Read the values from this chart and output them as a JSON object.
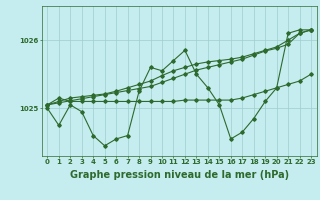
{
  "title": "Graphe pression niveau de la mer (hPa)",
  "xlabel_hours": [
    0,
    1,
    2,
    3,
    4,
    5,
    6,
    7,
    8,
    9,
    10,
    11,
    12,
    13,
    14,
    15,
    16,
    17,
    18,
    19,
    20,
    21,
    22,
    23
  ],
  "ylim": [
    1024.3,
    1026.5
  ],
  "yticks": [
    1025,
    1026
  ],
  "bg_color": "#c5ecee",
  "line_color": "#2d6a2d",
  "grid_color": "#9ecece",
  "series_main": [
    1025.0,
    1024.75,
    1025.05,
    1024.95,
    1024.6,
    1024.45,
    1024.55,
    1024.6,
    1025.25,
    1025.6,
    1025.55,
    1025.7,
    1025.85,
    1025.5,
    1025.3,
    1025.05,
    1024.55,
    1024.65,
    1024.85,
    1025.1,
    1025.3,
    1026.1,
    1026.15,
    1026.15
  ],
  "series_linear1": [
    1025.05,
    1025.08,
    1025.11,
    1025.14,
    1025.17,
    1025.2,
    1025.23,
    1025.26,
    1025.29,
    1025.32,
    1025.38,
    1025.44,
    1025.5,
    1025.56,
    1025.6,
    1025.64,
    1025.68,
    1025.72,
    1025.78,
    1025.84,
    1025.88,
    1025.94,
    1026.1,
    1026.15
  ],
  "series_linear2": [
    1025.05,
    1025.1,
    1025.15,
    1025.17,
    1025.19,
    1025.21,
    1025.25,
    1025.3,
    1025.35,
    1025.4,
    1025.48,
    1025.55,
    1025.6,
    1025.65,
    1025.68,
    1025.7,
    1025.72,
    1025.75,
    1025.8,
    1025.85,
    1025.9,
    1026.0,
    1026.1,
    1026.15
  ],
  "series_flat": [
    1025.05,
    1025.15,
    1025.1,
    1025.1,
    1025.1,
    1025.1,
    1025.1,
    1025.1,
    1025.1,
    1025.1,
    1025.1,
    1025.1,
    1025.12,
    1025.12,
    1025.12,
    1025.12,
    1025.12,
    1025.15,
    1025.2,
    1025.25,
    1025.3,
    1025.35,
    1025.4,
    1025.5
  ],
  "marker": "D",
  "markersize": 1.8,
  "linewidth": 0.8,
  "title_fontsize": 7,
  "tick_fontsize": 5,
  "title_color": "#2d6a2d",
  "axis_color": "#2d6a2d"
}
